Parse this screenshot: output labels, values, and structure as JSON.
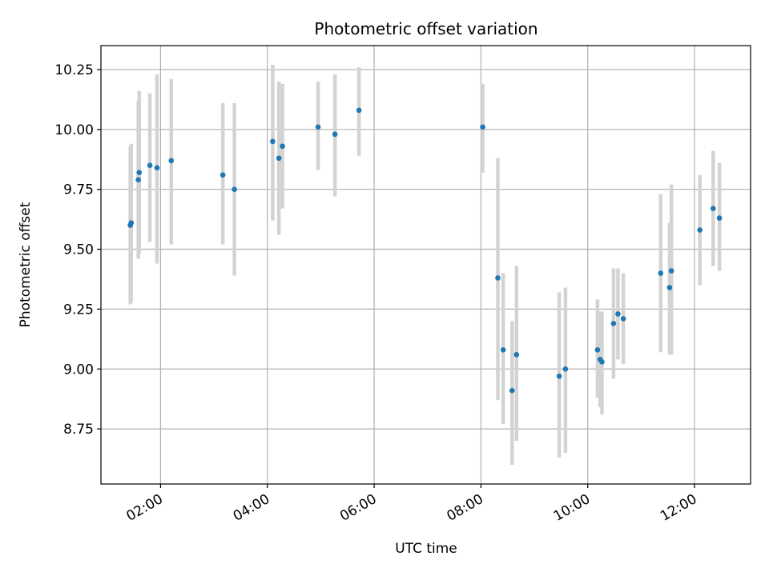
{
  "chart_data": {
    "type": "scatter",
    "title": "Photometric offset variation",
    "xlabel": "UTC time",
    "ylabel": "Photometric offset",
    "x_format": "HH:MM",
    "xlim": [
      "00:53",
      "13:03"
    ],
    "ylim": [
      8.52,
      10.35
    ],
    "x_ticks": [
      "02:00",
      "04:00",
      "06:00",
      "08:00",
      "10:00",
      "12:00"
    ],
    "y_ticks": [
      8.75,
      9.0,
      9.25,
      9.5,
      9.75,
      10.0,
      10.25
    ],
    "y_tick_labels": [
      "8.75",
      "9.00",
      "9.25",
      "9.50",
      "9.75",
      "10.00",
      "10.25"
    ],
    "grid": true,
    "point_color": "#1f77b4",
    "errorbar_color": "#d3d3d3",
    "points": [
      {
        "t": "01:26",
        "y": 9.6,
        "lo": 9.27,
        "hi": 9.93
      },
      {
        "t": "01:27",
        "y": 9.61,
        "lo": 9.28,
        "hi": 9.94
      },
      {
        "t": "01:35",
        "y": 9.79,
        "lo": 9.46,
        "hi": 10.12
      },
      {
        "t": "01:36",
        "y": 9.82,
        "lo": 9.48,
        "hi": 10.16
      },
      {
        "t": "01:48",
        "y": 9.85,
        "lo": 9.53,
        "hi": 10.15
      },
      {
        "t": "01:56",
        "y": 9.84,
        "lo": 9.44,
        "hi": 10.23
      },
      {
        "t": "02:12",
        "y": 9.87,
        "lo": 9.52,
        "hi": 10.21
      },
      {
        "t": "03:10",
        "y": 9.81,
        "lo": 9.52,
        "hi": 10.11
      },
      {
        "t": "03:23",
        "y": 9.75,
        "lo": 9.39,
        "hi": 10.11
      },
      {
        "t": "04:06",
        "y": 9.95,
        "lo": 9.62,
        "hi": 10.27
      },
      {
        "t": "04:13",
        "y": 9.88,
        "lo": 9.56,
        "hi": 10.2
      },
      {
        "t": "04:17",
        "y": 9.93,
        "lo": 9.67,
        "hi": 10.19
      },
      {
        "t": "04:57",
        "y": 10.01,
        "lo": 9.83,
        "hi": 10.2
      },
      {
        "t": "05:16",
        "y": 9.98,
        "lo": 9.72,
        "hi": 10.23
      },
      {
        "t": "05:43",
        "y": 10.08,
        "lo": 9.89,
        "hi": 10.26
      },
      {
        "t": "08:02",
        "y": 10.01,
        "lo": 9.82,
        "hi": 10.19
      },
      {
        "t": "08:19",
        "y": 9.38,
        "lo": 8.87,
        "hi": 9.88
      },
      {
        "t": "08:25",
        "y": 9.08,
        "lo": 8.77,
        "hi": 9.4
      },
      {
        "t": "08:35",
        "y": 8.91,
        "lo": 8.6,
        "hi": 9.2
      },
      {
        "t": "08:40",
        "y": 9.06,
        "lo": 8.7,
        "hi": 9.43
      },
      {
        "t": "09:28",
        "y": 8.97,
        "lo": 8.63,
        "hi": 9.32
      },
      {
        "t": "09:35",
        "y": 9.0,
        "lo": 8.65,
        "hi": 9.34
      },
      {
        "t": "10:11",
        "y": 9.08,
        "lo": 8.88,
        "hi": 9.29
      },
      {
        "t": "10:14",
        "y": 9.04,
        "lo": 8.84,
        "hi": 9.24
      },
      {
        "t": "10:16",
        "y": 9.03,
        "lo": 8.81,
        "hi": 9.24
      },
      {
        "t": "10:29",
        "y": 9.19,
        "lo": 8.96,
        "hi": 9.42
      },
      {
        "t": "10:34",
        "y": 9.23,
        "lo": 9.04,
        "hi": 9.42
      },
      {
        "t": "10:40",
        "y": 9.21,
        "lo": 9.02,
        "hi": 9.4
      },
      {
        "t": "11:22",
        "y": 9.4,
        "lo": 9.07,
        "hi": 9.73
      },
      {
        "t": "11:32",
        "y": 9.34,
        "lo": 9.06,
        "hi": 9.61
      },
      {
        "t": "11:34",
        "y": 9.41,
        "lo": 9.06,
        "hi": 9.77
      },
      {
        "t": "12:06",
        "y": 9.58,
        "lo": 9.35,
        "hi": 9.81
      },
      {
        "t": "12:21",
        "y": 9.67,
        "lo": 9.43,
        "hi": 9.91
      },
      {
        "t": "12:28",
        "y": 9.63,
        "lo": 9.41,
        "hi": 9.86
      }
    ]
  }
}
